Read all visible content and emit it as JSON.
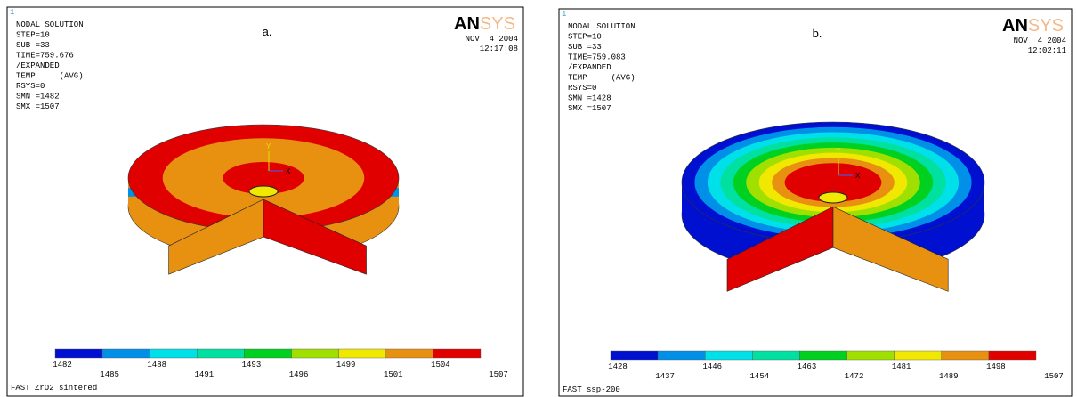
{
  "panels": [
    {
      "id_mark": "1",
      "label": "a.",
      "logo": [
        "AN",
        "SYS"
      ],
      "header": [
        "NODAL SOLUTION",
        "STEP=10",
        "SUB =33",
        "TIME=759.676",
        "/EXPANDED",
        "TEMP     (AVG)",
        "RSYS=0",
        "SMN =1482",
        "SMX =1507"
      ],
      "date": "NOV  4 2004",
      "time": "12:17:08",
      "axes": [
        "Y",
        "X"
      ],
      "legend": [
        "1482",
        "1485",
        "1488",
        "1491",
        "1493",
        "1496",
        "1499",
        "1501",
        "1504",
        "1507"
      ],
      "caption": "FAST ZrO2 sintered"
    },
    {
      "id_mark": "1",
      "label": "b.",
      "logo": [
        "AN",
        "SYS"
      ],
      "header": [
        "NODAL SOLUTION",
        "STEP=10",
        "SUB =33",
        "TIME=759.083",
        "/EXPANDED",
        "TEMP     (AVG)",
        "RSYS=0",
        "SMN =1428",
        "SMX =1507"
      ],
      "date": "NOV  4 2004",
      "time": "12:02:11",
      "axes": [
        "Y",
        "X"
      ],
      "legend": [
        "1428",
        "1437",
        "1446",
        "1454",
        "1463",
        "1472",
        "1481",
        "1489",
        "1498",
        "1507"
      ],
      "caption": "FAST ssp-200"
    }
  ]
}
